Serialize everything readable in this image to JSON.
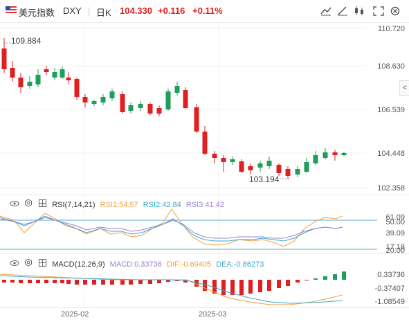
{
  "header": {
    "instrument": "美元指数",
    "symbol": "DXY",
    "period": "日K",
    "price": "104.330",
    "change": "+0.116",
    "change_pct": "+0.11%",
    "flag_icon": "us-flag-icon",
    "toolbar_icons": [
      "line-chart-icon",
      "draw-tool-icon",
      "candlestick-icon",
      "fullscreen-icon",
      "settings-icon"
    ]
  },
  "main_chart": {
    "price_axis": [
      "110.720",
      "108.630",
      "106.539",
      "104.448",
      "102.358"
    ],
    "high_label": "109.884",
    "low_label": "103.194",
    "side_toggle": "<"
  },
  "rsi": {
    "name": "RSI(7,14,21)",
    "rsi1": "RSI1:54.57",
    "rsi2": "RSI2:42.84",
    "rsi3": "RSI3:41.42",
    "axis": [
      "61.09",
      "50.00",
      "39.09",
      "20.00",
      "17.18"
    ],
    "colors": {
      "rsi1": "#f3a23c",
      "rsi2": "#3aa6c9",
      "rsi3": "#9b7fd4"
    }
  },
  "macd": {
    "name": "MACD(12,26,9)",
    "macd": "MACD:0.33736",
    "dif": "DIF:-0.69405",
    "dea": "DEA:-0.86273",
    "axis": [
      "0.33736",
      "-0.37407",
      "-1.08549"
    ],
    "colors": {
      "macd": "#9b7fd4",
      "dif": "#f3a23c",
      "dea": "#3aa6c9"
    }
  },
  "time_axis": [
    "2025-02",
    "2025-03"
  ],
  "colors": {
    "up": "#1e9e5a",
    "down": "#e02020",
    "accent_red": "#e02020"
  }
}
